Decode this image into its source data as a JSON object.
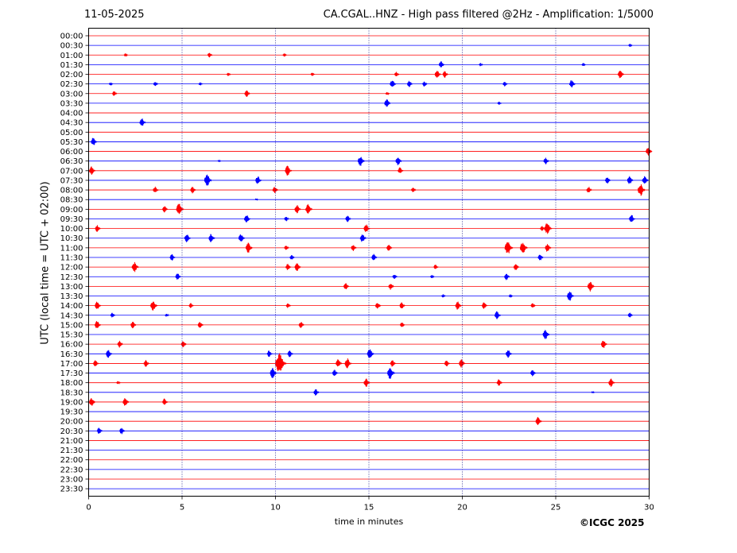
{
  "header": {
    "date": "11-05-2025",
    "title": "CA.CGAL..HNZ - High pass filtered @2Hz - Amplification: 1/5000"
  },
  "footer": {
    "copyright": "©ICGC 2025"
  },
  "colors": {
    "trace_even": "#ff0000",
    "trace_odd": "#0000ff",
    "grid": "#000080"
  },
  "chart_data": {
    "type": "line",
    "xlabel": "time in minutes",
    "ylabel": "UTC (local time = UTC + 02:00)",
    "xlim": [
      0,
      30
    ],
    "x_ticks": [
      0,
      5,
      10,
      15,
      20,
      25,
      30
    ],
    "grid": "vertical dotted at 5-minute intervals",
    "row_labels": [
      "00:00",
      "00:30",
      "01:00",
      "01:30",
      "02:00",
      "02:30",
      "03:00",
      "03:30",
      "04:00",
      "04:30",
      "05:00",
      "05:30",
      "06:00",
      "06:30",
      "07:00",
      "07:30",
      "08:00",
      "08:30",
      "09:00",
      "09:30",
      "10:00",
      "10:30",
      "11:00",
      "11:30",
      "12:00",
      "12:30",
      "13:00",
      "13:30",
      "14:00",
      "14:30",
      "15:00",
      "15:30",
      "16:00",
      "16:30",
      "17:00",
      "17:30",
      "18:00",
      "18:30",
      "19:00",
      "19:30",
      "20:00",
      "20:30",
      "21:00",
      "21:30",
      "22:00",
      "22:30",
      "23:00",
      "23:30"
    ],
    "events": [
      {
        "row": "00:30",
        "minute": 29.0,
        "amp": 2
      },
      {
        "row": "01:00",
        "minute": 2.0,
        "amp": 2
      },
      {
        "row": "01:00",
        "minute": 6.5,
        "amp": 3
      },
      {
        "row": "01:00",
        "minute": 10.5,
        "amp": 2
      },
      {
        "row": "01:30",
        "minute": 18.9,
        "amp": 4
      },
      {
        "row": "01:30",
        "minute": 21.0,
        "amp": 2
      },
      {
        "row": "01:30",
        "minute": 26.5,
        "amp": 2
      },
      {
        "row": "02:00",
        "minute": 7.5,
        "amp": 2
      },
      {
        "row": "02:00",
        "minute": 12.0,
        "amp": 2
      },
      {
        "row": "02:00",
        "minute": 16.5,
        "amp": 3
      },
      {
        "row": "02:00",
        "minute": 18.7,
        "amp": 5
      },
      {
        "row": "02:00",
        "minute": 19.1,
        "amp": 4
      },
      {
        "row": "02:00",
        "minute": 28.5,
        "amp": 5
      },
      {
        "row": "02:30",
        "minute": 1.2,
        "amp": 2
      },
      {
        "row": "02:30",
        "minute": 3.6,
        "amp": 3
      },
      {
        "row": "02:30",
        "minute": 6.0,
        "amp": 2
      },
      {
        "row": "02:30",
        "minute": 16.3,
        "amp": 5
      },
      {
        "row": "02:30",
        "minute": 17.2,
        "amp": 4
      },
      {
        "row": "02:30",
        "minute": 18.0,
        "amp": 3
      },
      {
        "row": "02:30",
        "minute": 22.3,
        "amp": 3
      },
      {
        "row": "02:30",
        "minute": 25.9,
        "amp": 5
      },
      {
        "row": "03:00",
        "minute": 1.4,
        "amp": 3
      },
      {
        "row": "03:00",
        "minute": 8.5,
        "amp": 4
      },
      {
        "row": "03:00",
        "minute": 16.0,
        "amp": 2
      },
      {
        "row": "03:30",
        "minute": 16.0,
        "amp": 5
      },
      {
        "row": "03:30",
        "minute": 22.0,
        "amp": 2
      },
      {
        "row": "04:30",
        "minute": 2.9,
        "amp": 5
      },
      {
        "row": "05:30",
        "minute": 0.3,
        "amp": 5
      },
      {
        "row": "06:00",
        "minute": 30.0,
        "amp": 5
      },
      {
        "row": "06:30",
        "minute": 7.0,
        "amp": 1
      },
      {
        "row": "06:30",
        "minute": 14.6,
        "amp": 6
      },
      {
        "row": "06:30",
        "minute": 16.6,
        "amp": 5
      },
      {
        "row": "06:30",
        "minute": 24.5,
        "amp": 4
      },
      {
        "row": "07:00",
        "minute": 0.2,
        "amp": 5
      },
      {
        "row": "07:00",
        "minute": 10.7,
        "amp": 6
      },
      {
        "row": "07:00",
        "minute": 16.7,
        "amp": 4
      },
      {
        "row": "07:30",
        "minute": 6.4,
        "amp": 7
      },
      {
        "row": "07:30",
        "minute": 9.1,
        "amp": 5
      },
      {
        "row": "07:30",
        "minute": 27.8,
        "amp": 4
      },
      {
        "row": "07:30",
        "minute": 29.0,
        "amp": 5
      },
      {
        "row": "07:30",
        "minute": 29.8,
        "amp": 5
      },
      {
        "row": "08:00",
        "minute": 3.6,
        "amp": 4
      },
      {
        "row": "08:00",
        "minute": 5.6,
        "amp": 4
      },
      {
        "row": "08:00",
        "minute": 10.0,
        "amp": 4
      },
      {
        "row": "08:00",
        "minute": 17.4,
        "amp": 3
      },
      {
        "row": "08:00",
        "minute": 26.8,
        "amp": 4
      },
      {
        "row": "08:00",
        "minute": 29.6,
        "amp": 7
      },
      {
        "row": "08:30",
        "minute": 9.0,
        "amp": 1
      },
      {
        "row": "09:00",
        "minute": 4.1,
        "amp": 4
      },
      {
        "row": "09:00",
        "minute": 4.9,
        "amp": 7
      },
      {
        "row": "09:00",
        "minute": 11.2,
        "amp": 5
      },
      {
        "row": "09:00",
        "minute": 11.8,
        "amp": 6
      },
      {
        "row": "09:30",
        "minute": 8.5,
        "amp": 5
      },
      {
        "row": "09:30",
        "minute": 10.6,
        "amp": 3
      },
      {
        "row": "09:30",
        "minute": 13.9,
        "amp": 4
      },
      {
        "row": "09:30",
        "minute": 29.1,
        "amp": 5
      },
      {
        "row": "10:00",
        "minute": 0.5,
        "amp": 4
      },
      {
        "row": "10:00",
        "minute": 14.9,
        "amp": 5
      },
      {
        "row": "10:00",
        "minute": 24.3,
        "amp": 3
      },
      {
        "row": "10:00",
        "minute": 24.6,
        "amp": 7
      },
      {
        "row": "10:30",
        "minute": 5.3,
        "amp": 5
      },
      {
        "row": "10:30",
        "minute": 6.6,
        "amp": 5
      },
      {
        "row": "10:30",
        "minute": 8.2,
        "amp": 5
      },
      {
        "row": "10:30",
        "minute": 14.7,
        "amp": 5
      },
      {
        "row": "11:00",
        "minute": 8.6,
        "amp": 6
      },
      {
        "row": "11:00",
        "minute": 10.6,
        "amp": 3
      },
      {
        "row": "11:00",
        "minute": 14.2,
        "amp": 4
      },
      {
        "row": "11:00",
        "minute": 16.1,
        "amp": 4
      },
      {
        "row": "11:00",
        "minute": 22.5,
        "amp": 8
      },
      {
        "row": "11:00",
        "minute": 23.3,
        "amp": 7
      },
      {
        "row": "11:00",
        "minute": 24.6,
        "amp": 5
      },
      {
        "row": "11:30",
        "minute": 4.5,
        "amp": 4
      },
      {
        "row": "11:30",
        "minute": 10.9,
        "amp": 3
      },
      {
        "row": "11:30",
        "minute": 15.3,
        "amp": 4
      },
      {
        "row": "11:30",
        "minute": 24.2,
        "amp": 4
      },
      {
        "row": "12:00",
        "minute": 2.5,
        "amp": 6
      },
      {
        "row": "12:00",
        "minute": 10.7,
        "amp": 4
      },
      {
        "row": "12:00",
        "minute": 11.2,
        "amp": 5
      },
      {
        "row": "12:00",
        "minute": 18.6,
        "amp": 3
      },
      {
        "row": "12:00",
        "minute": 22.9,
        "amp": 4
      },
      {
        "row": "12:30",
        "minute": 4.8,
        "amp": 4
      },
      {
        "row": "12:30",
        "minute": 16.4,
        "amp": 3
      },
      {
        "row": "12:30",
        "minute": 18.4,
        "amp": 2
      },
      {
        "row": "12:30",
        "minute": 22.4,
        "amp": 4
      },
      {
        "row": "13:00",
        "minute": 13.8,
        "amp": 4
      },
      {
        "row": "13:00",
        "minute": 16.2,
        "amp": 4
      },
      {
        "row": "13:00",
        "minute": 26.9,
        "amp": 6
      },
      {
        "row": "13:30",
        "minute": 25.8,
        "amp": 6
      },
      {
        "row": "13:30",
        "minute": 19.0,
        "amp": 2
      },
      {
        "row": "13:30",
        "minute": 22.6,
        "amp": 2
      },
      {
        "row": "14:00",
        "minute": 0.5,
        "amp": 5
      },
      {
        "row": "14:00",
        "minute": 3.5,
        "amp": 6
      },
      {
        "row": "14:00",
        "minute": 5.5,
        "amp": 3
      },
      {
        "row": "14:00",
        "minute": 10.7,
        "amp": 3
      },
      {
        "row": "14:00",
        "minute": 15.5,
        "amp": 4
      },
      {
        "row": "14:00",
        "minute": 16.8,
        "amp": 4
      },
      {
        "row": "14:00",
        "minute": 19.8,
        "amp": 5
      },
      {
        "row": "14:00",
        "minute": 21.2,
        "amp": 4
      },
      {
        "row": "14:00",
        "minute": 23.8,
        "amp": 3
      },
      {
        "row": "14:30",
        "minute": 1.3,
        "amp": 3
      },
      {
        "row": "14:30",
        "minute": 4.2,
        "amp": 2
      },
      {
        "row": "14:30",
        "minute": 21.9,
        "amp": 5
      },
      {
        "row": "14:30",
        "minute": 29.0,
        "amp": 3
      },
      {
        "row": "15:00",
        "minute": 0.5,
        "amp": 5
      },
      {
        "row": "15:00",
        "minute": 2.4,
        "amp": 4
      },
      {
        "row": "15:00",
        "minute": 6.0,
        "amp": 4
      },
      {
        "row": "15:00",
        "minute": 11.4,
        "amp": 4
      },
      {
        "row": "15:00",
        "minute": 16.8,
        "amp": 3
      },
      {
        "row": "15:30",
        "minute": 24.5,
        "amp": 6
      },
      {
        "row": "16:00",
        "minute": 1.7,
        "amp": 4
      },
      {
        "row": "16:00",
        "minute": 5.1,
        "amp": 4
      },
      {
        "row": "16:00",
        "minute": 27.6,
        "amp": 5
      },
      {
        "row": "16:30",
        "minute": 1.1,
        "amp": 5
      },
      {
        "row": "16:30",
        "minute": 9.7,
        "amp": 4
      },
      {
        "row": "16:30",
        "minute": 10.8,
        "amp": 4
      },
      {
        "row": "16:30",
        "minute": 15.1,
        "amp": 6
      },
      {
        "row": "16:30",
        "minute": 22.5,
        "amp": 5
      },
      {
        "row": "17:00",
        "minute": 0.4,
        "amp": 4
      },
      {
        "row": "17:00",
        "minute": 3.1,
        "amp": 4
      },
      {
        "row": "17:00",
        "minute": 10.3,
        "amp": 12
      },
      {
        "row": "17:00",
        "minute": 13.4,
        "amp": 5
      },
      {
        "row": "17:00",
        "minute": 13.9,
        "amp": 6
      },
      {
        "row": "17:00",
        "minute": 16.3,
        "amp": 4
      },
      {
        "row": "17:00",
        "minute": 19.2,
        "amp": 4
      },
      {
        "row": "17:00",
        "minute": 20.0,
        "amp": 5
      },
      {
        "row": "17:30",
        "minute": 9.9,
        "amp": 6
      },
      {
        "row": "17:30",
        "minute": 13.2,
        "amp": 4
      },
      {
        "row": "17:30",
        "minute": 16.2,
        "amp": 7
      },
      {
        "row": "17:30",
        "minute": 23.8,
        "amp": 4
      },
      {
        "row": "18:00",
        "minute": 1.6,
        "amp": 2
      },
      {
        "row": "18:00",
        "minute": 14.9,
        "amp": 5
      },
      {
        "row": "18:00",
        "minute": 22.0,
        "amp": 4
      },
      {
        "row": "18:00",
        "minute": 28.0,
        "amp": 5
      },
      {
        "row": "18:30",
        "minute": 12.2,
        "amp": 4
      },
      {
        "row": "18:30",
        "minute": 27.0,
        "amp": 1
      },
      {
        "row": "19:00",
        "minute": 0.2,
        "amp": 5
      },
      {
        "row": "19:00",
        "minute": 2.0,
        "amp": 5
      },
      {
        "row": "19:00",
        "minute": 4.1,
        "amp": 4
      },
      {
        "row": "20:00",
        "minute": 24.1,
        "amp": 5
      },
      {
        "row": "20:30",
        "minute": 0.6,
        "amp": 4
      },
      {
        "row": "20:30",
        "minute": 1.8,
        "amp": 4
      }
    ]
  }
}
